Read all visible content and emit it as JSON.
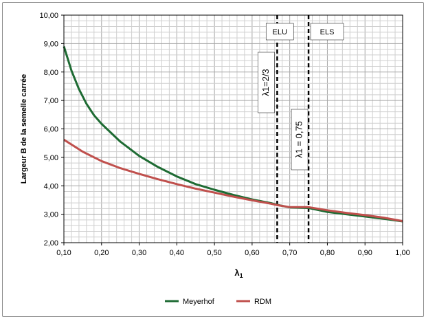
{
  "chart_data": {
    "type": "line",
    "title": "",
    "xlabel": "λ",
    "xlabel_subscript": "1",
    "ylabel": "Largeur B de la semelle carrée",
    "xlim": [
      0.1,
      1.0
    ],
    "ylim": [
      2.0,
      10.0
    ],
    "x_major_ticks": [
      0.1,
      0.2,
      0.3,
      0.4,
      0.5,
      0.6,
      0.7,
      0.8,
      0.9,
      1.0
    ],
    "x_tick_labels": [
      "0,10",
      "0,20",
      "0,30",
      "0,40",
      "0,50",
      "0,60",
      "0,70",
      "0,80",
      "0,90",
      "1,00"
    ],
    "y_major_ticks": [
      2,
      3,
      4,
      5,
      6,
      7,
      8,
      9,
      10
    ],
    "y_tick_labels": [
      "2,00",
      "3,00",
      "4,00",
      "5,00",
      "6,00",
      "7,00",
      "8,00",
      "9,00",
      "10,00"
    ],
    "grid": "major and minor",
    "legend_position": "bottom",
    "series": [
      {
        "name": "Meyerhof",
        "color": "#1e6b33",
        "x": [
          0.1,
          0.12,
          0.14,
          0.16,
          0.18,
          0.2,
          0.25,
          0.3,
          0.35,
          0.4,
          0.45,
          0.5,
          0.55,
          0.6,
          0.65,
          0.667,
          0.7,
          0.75,
          0.8,
          0.85,
          0.9,
          0.95,
          1.0
        ],
        "y": [
          8.9,
          8.05,
          7.4,
          6.88,
          6.48,
          6.18,
          5.55,
          5.05,
          4.66,
          4.33,
          4.06,
          3.86,
          3.68,
          3.52,
          3.39,
          3.33,
          3.24,
          3.22,
          3.08,
          3.0,
          2.92,
          2.84,
          2.75
        ]
      },
      {
        "name": "RDM",
        "color": "#c0504d",
        "x": [
          0.1,
          0.15,
          0.2,
          0.25,
          0.3,
          0.35,
          0.4,
          0.45,
          0.5,
          0.55,
          0.6,
          0.65,
          0.667,
          0.7,
          0.75,
          0.8,
          0.85,
          0.9,
          0.95,
          1.0
        ],
        "y": [
          5.62,
          5.2,
          4.87,
          4.62,
          4.42,
          4.23,
          4.06,
          3.9,
          3.76,
          3.62,
          3.49,
          3.37,
          3.32,
          3.25,
          3.25,
          3.14,
          3.05,
          2.97,
          2.88,
          2.76
        ]
      }
    ],
    "reference_lines": [
      {
        "x": 0.6667,
        "style": "dashed",
        "color": "#000000",
        "label": "λ1=2/3"
      },
      {
        "x": 0.75,
        "style": "dashed",
        "color": "#000000",
        "label": "λ1 = 0,75"
      }
    ],
    "zone_labels": [
      "ELU",
      "ELS"
    ]
  }
}
